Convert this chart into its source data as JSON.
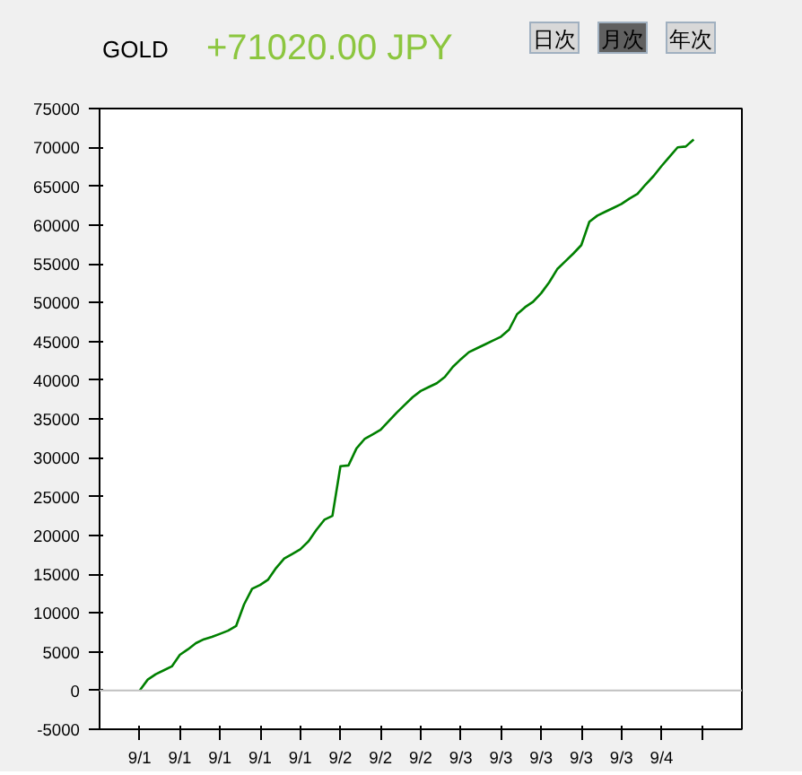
{
  "chart_data": {
    "type": "line",
    "title": "GOLD",
    "subtitle": "+71020.00 JPY",
    "annotations": [
      "日次",
      "月次",
      "年次"
    ],
    "categories": [
      "9/1",
      null,
      null,
      null,
      null,
      "9/1",
      null,
      null,
      null,
      null,
      "9/1",
      null,
      null,
      null,
      null,
      "9/1",
      null,
      null,
      null,
      null,
      "9/1",
      null,
      null,
      null,
      null,
      "9/2",
      null,
      null,
      null,
      null,
      "9/2",
      null,
      null,
      null,
      null,
      "9/2",
      null,
      null,
      null,
      null,
      "9/3",
      null,
      null,
      null,
      null,
      "9/3",
      null,
      null,
      null,
      null,
      "9/3",
      null,
      null,
      null,
      null,
      "9/3",
      null,
      null,
      null,
      null,
      "9/3",
      null,
      null,
      null,
      null,
      "9/4",
      null,
      null,
      null,
      null,
      null
    ],
    "series": [
      {
        "color": "#008000",
        "values": [
          0,
          1400,
          2100,
          2600,
          3100,
          4600,
          5300,
          6100,
          6600,
          6900,
          7300,
          7700,
          8300,
          11100,
          13100,
          13600,
          14300,
          15800,
          17000,
          17600,
          18200,
          19200,
          20700,
          22000,
          22500,
          28900,
          29000,
          31200,
          32400,
          33000,
          33600,
          34700,
          35800,
          36800,
          37800,
          38600,
          39100,
          39600,
          40400,
          41700,
          42700,
          43600,
          44100,
          44600,
          45100,
          45600,
          46500,
          48500,
          49400,
          50100,
          51200,
          52600,
          54300,
          55300,
          56300,
          57400,
          60400,
          61200,
          61700,
          62200,
          62700,
          63400,
          64000,
          65200,
          66300,
          67600,
          68800,
          70000,
          70100,
          71000,
          null
        ]
      }
    ],
    "ylim": [
      -5000,
      75000
    ],
    "yticks": [
      -5000,
      0,
      5000,
      10000,
      15000,
      20000,
      25000,
      30000,
      35000,
      40000,
      45000,
      50000,
      55000,
      60000,
      65000,
      70000,
      75000
    ],
    "ref_lines": [
      {
        "axis": "y",
        "value": 0,
        "color": "#c0c0c0"
      }
    ],
    "grid": false,
    "marker": "none",
    "line_style": "solid"
  }
}
